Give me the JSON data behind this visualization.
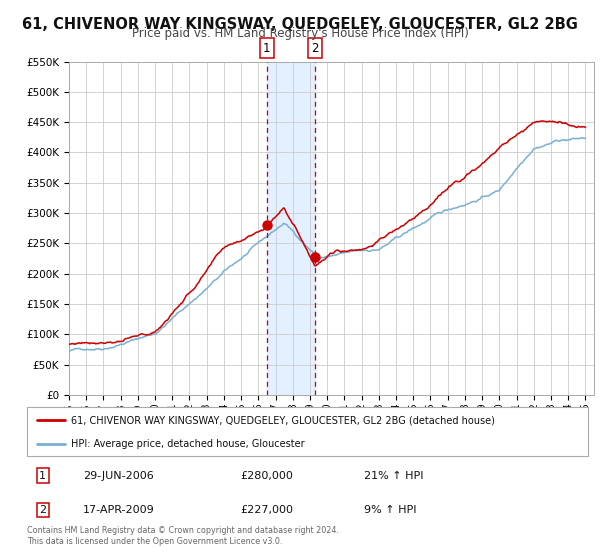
{
  "title": "61, CHIVENOR WAY KINGSWAY, QUEDGELEY, GLOUCESTER, GL2 2BG",
  "subtitle": "Price paid vs. HM Land Registry's House Price Index (HPI)",
  "ylim": [
    0,
    550000
  ],
  "yticks": [
    0,
    50000,
    100000,
    150000,
    200000,
    250000,
    300000,
    350000,
    400000,
    450000,
    500000,
    550000
  ],
  "ytick_labels": [
    "£0",
    "£50K",
    "£100K",
    "£150K",
    "£200K",
    "£250K",
    "£300K",
    "£350K",
    "£400K",
    "£450K",
    "£500K",
    "£550K"
  ],
  "xlim_start": 1995.0,
  "xlim_end": 2025.5,
  "xticks": [
    1995,
    1996,
    1997,
    1998,
    1999,
    2000,
    2001,
    2002,
    2003,
    2004,
    2005,
    2006,
    2007,
    2008,
    2009,
    2010,
    2011,
    2012,
    2013,
    2014,
    2015,
    2016,
    2017,
    2018,
    2019,
    2020,
    2021,
    2022,
    2023,
    2024,
    2025
  ],
  "red_line_color": "#cc0000",
  "blue_line_color": "#7aafd4",
  "point1_x": 2006.49,
  "point1_y": 280000,
  "point2_x": 2009.29,
  "point2_y": 227000,
  "vline1_x": 2006.49,
  "vline2_x": 2009.29,
  "shade_color": "#ddeeff",
  "legend_label_red": "61, CHIVENOR WAY KINGSWAY, QUEDGELEY, GLOUCESTER, GL2 2BG (detached house)",
  "legend_label_blue": "HPI: Average price, detached house, Gloucester",
  "annotation1_date": "29-JUN-2006",
  "annotation1_price": "£280,000",
  "annotation1_hpi": "21% ↑ HPI",
  "annotation2_date": "17-APR-2009",
  "annotation2_price": "£227,000",
  "annotation2_hpi": "9% ↑ HPI",
  "footer": "Contains HM Land Registry data © Crown copyright and database right 2024.\nThis data is licensed under the Open Government Licence v3.0.",
  "bg_color": "#ffffff",
  "grid_color": "#cccccc",
  "title_fontsize": 10.5,
  "subtitle_fontsize": 8.5
}
